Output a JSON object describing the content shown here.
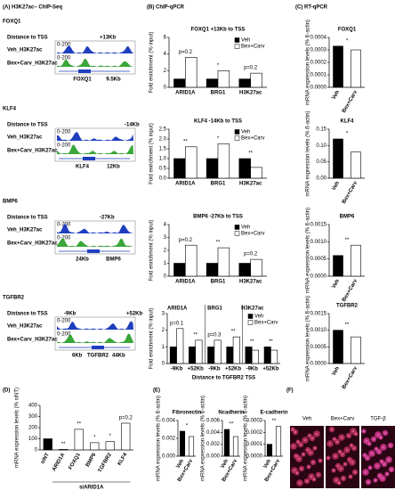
{
  "panel_labels": [
    "(A) H3K27ac– ChIP-Seq",
    "(B) ChIP-qPCR",
    "(C) RT-qPCR",
    "(D)",
    "(E)",
    "(F)"
  ],
  "chip_seq_rows": [
    {
      "gene": "FOXQ1",
      "distance_label": "Distance to TSS",
      "offsets": [
        "+13Kb"
      ],
      "tracks": [
        "Veh_H3K27ac",
        "Bex+Carv_H3K27ac"
      ],
      "scale": "0-200",
      "features": [
        "FOXQ1",
        "9.5Kb"
      ]
    },
    {
      "gene": "KLF4",
      "distance_label": "Distance to TSS",
      "offsets": [
        "-14Kb"
      ],
      "tracks": [
        "Veh_H3K27ac",
        "Bex+Carv_H3K27ac"
      ],
      "scale": "0-200",
      "features": [
        "KLF4",
        "12Kb"
      ]
    },
    {
      "gene": "BMP6",
      "distance_label": "Distance to TSS",
      "offsets": [
        "-27Kb"
      ],
      "tracks": [
        "Veh_H3K27ac",
        "Bex+Carv_H3K27ac"
      ],
      "scale": "0-200",
      "features": [
        "24Kb",
        "BMP6"
      ]
    },
    {
      "gene": "TGFBR2",
      "distance_label": "Distance to TSS",
      "offsets": [
        "-9Kb",
        "+52Kb"
      ],
      "tracks": [
        "Veh_H3K27ac",
        "Bex+Carv_H3K27ac"
      ],
      "scale": "0-200",
      "features": [
        "6Kb",
        "TGFBR2",
        "44Kb"
      ]
    }
  ],
  "microscopy_labels": [
    "Veh",
    "Bex+Carv",
    "TGF-β"
  ],
  "chart_data": [
    {
      "type": "bar",
      "title": "FOXQ1 +13Kb to TSS",
      "y_label": "Fold enrichment (% input)",
      "categories": [
        "ARID1A",
        "BRG1",
        "H3K27ac"
      ],
      "series": [
        {
          "name": "Veh",
          "color": "#000000",
          "values": [
            1,
            1,
            1
          ]
        },
        {
          "name": "Bex+Carv",
          "color": "#ffffff",
          "values": [
            3.6,
            2,
            1.7
          ]
        }
      ],
      "annotations": [
        "p=0.2",
        "*",
        "p=0.2"
      ],
      "ylim": [
        0,
        6
      ],
      "yticks": [
        0,
        2,
        4,
        6
      ]
    },
    {
      "type": "bar",
      "title": "FOXQ1",
      "y_label": "mRNA expression levels (% ß-actin)",
      "categories": [
        "Veh",
        "Bex+Carv"
      ],
      "values": [
        0.00033,
        0.0003
      ],
      "colors": [
        "#000000",
        "#ffffff"
      ],
      "annotation": "*",
      "ylim": [
        0,
        0.0004
      ],
      "yticks": [
        {
          "value": 0,
          "label": "0.0000"
        },
        0.0001,
        0.0002,
        0.0003,
        0.0004
      ]
    },
    {
      "type": "bar",
      "title": "KLF4 -14Kb to TSS",
      "y_label": "Fold enrichment (% input)",
      "categories": [
        "ARID1A",
        "BRG1",
        "H3K27ac"
      ],
      "series": [
        {
          "name": "Veh",
          "color": "#000000",
          "values": [
            1,
            1,
            1
          ]
        },
        {
          "name": "Bex+Carv",
          "color": "#ffffff",
          "values": [
            1.6,
            1.75,
            0.55
          ]
        }
      ],
      "annotations": [
        "**",
        "*",
        "**"
      ],
      "ylim": [
        0,
        2.5
      ],
      "yticks": [
        {
          "value": 0,
          "label": "0.0"
        },
        0.5,
        {
          "value": 1,
          "label": "1.0"
        },
        1.5,
        {
          "value": 2,
          "label": "2.0"
        },
        2.5
      ]
    },
    {
      "type": "bar",
      "title": "KLF4",
      "y_label": "mRNA expression levels (% ß-actin)",
      "categories": [
        "Veh",
        "Bex+Carv"
      ],
      "values": [
        0.12,
        0.08
      ],
      "colors": [
        "#000000",
        "#ffffff"
      ],
      "annotation": "*",
      "ylim": [
        0,
        0.15
      ],
      "yticks": [
        {
          "value": 0,
          "label": "0.00"
        },
        0.05,
        {
          "value": 0.1,
          "label": "0.10"
        },
        0.15
      ]
    },
    {
      "type": "bar",
      "title": "BMP6 -27Kb to TSS",
      "y_label": "Fold enrichment (% input)",
      "categories": [
        "ARID1A",
        "BRG1",
        "H3K27ac"
      ],
      "series": [
        {
          "name": "Veh",
          "color": "#000000",
          "values": [
            1,
            1,
            1
          ]
        },
        {
          "name": "Bex+Carv",
          "color": "#ffffff",
          "values": [
            2.4,
            2.2,
            1.3
          ]
        }
      ],
      "annotations": [
        "p=0.2",
        "**",
        "p=0.2"
      ],
      "ylim": [
        0,
        4
      ],
      "yticks": [
        0,
        1,
        2,
        3,
        4
      ]
    },
    {
      "type": "bar",
      "title": "BMP6",
      "y_label": "mRNA expression levels (% ß-actin)",
      "categories": [
        "Veh",
        "Bex+Carv"
      ],
      "values": [
        0.0006,
        0.0009
      ],
      "colors": [
        "#000000",
        "#ffffff"
      ],
      "annotation": "**",
      "ylim": [
        0,
        0.0015
      ],
      "yticks": [
        {
          "value": 0,
          "label": "0.0000"
        },
        0.0005,
        {
          "value": 0.001,
          "label": "0.0010"
        },
        0.0015
      ]
    },
    {
      "type": "bar",
      "y_label": "Fold enrichment (% input)",
      "x_label": "Distance to TGFBR2 TSS",
      "groups": [
        "ARID1A",
        "BRG1",
        "H3K27ac"
      ],
      "categories": [
        "-9Kb",
        "+52Kb",
        "-9Kb",
        "+52Kb",
        "-9Kb",
        "+52Kb"
      ],
      "series": [
        {
          "name": "Veh",
          "color": "#000000",
          "values": [
            1,
            1,
            1,
            1,
            1,
            1
          ]
        },
        {
          "name": "Bex+Carv",
          "color": "#ffffff",
          "values": [
            2.1,
            1.4,
            1.4,
            1.6,
            0.8,
            0.8
          ]
        }
      ],
      "annotations": [
        "p=0.1",
        "**",
        "p=0.3",
        "**",
        "**",
        "**"
      ],
      "ylim": [
        0,
        3
      ],
      "yticks": [
        0,
        1,
        2,
        3
      ]
    },
    {
      "type": "bar",
      "title": "TGFBR2",
      "y_label": "mRNA expression levels (% ß-actin)",
      "categories": [
        "Veh",
        "Bex+Carv"
      ],
      "values": [
        0.001,
        0.0008
      ],
      "colors": [
        "#000000",
        "#ffffff"
      ],
      "annotation": "**",
      "ylim": [
        0,
        0.0015
      ],
      "yticks": [
        {
          "value": 0,
          "label": "0.0000"
        },
        0.0005,
        {
          "value": 0.001,
          "label": "0.0010"
        },
        0.0015
      ]
    },
    {
      "type": "bar",
      "y_label": "mRNA expression levels (% siNT)",
      "categories": [
        "siNT",
        "ARID1A",
        "FOXQ1",
        "BMP6",
        "TGFBR2",
        "KLF4"
      ],
      "values": [
        100,
        5,
        185,
        65,
        75,
        240
      ],
      "colors": [
        "#000000",
        "#ffffff",
        "#ffffff",
        "#ffffff",
        "#ffffff",
        "#ffffff"
      ],
      "annotations": [
        null,
        "**",
        "**",
        "*",
        "*",
        "p=0.2"
      ],
      "group_label": "siARID1A",
      "ylim": [
        0,
        400
      ],
      "yticks": [
        0,
        100,
        200,
        300,
        400
      ]
    },
    {
      "type": "bar",
      "title": "Fibronectin",
      "y_label": "mRNA expression levels (% ß-actin)",
      "categories": [
        "Veh",
        "Bex+Carv"
      ],
      "values": [
        0.0028,
        0.0022
      ],
      "colors": [
        "#000000",
        "#ffffff"
      ],
      "annotation": "*",
      "ylim": [
        0,
        0.004
      ],
      "yticks": [
        {
          "value": 0,
          "label": "0.000"
        },
        0.002,
        0.004
      ]
    },
    {
      "type": "bar",
      "title": "Ncadherin",
      "y_label": "mRNA expression levels (% ß-actin)",
      "categories": [
        "Veh",
        "Bex+Carv"
      ],
      "values": [
        0.0045,
        0.0033
      ],
      "colors": [
        "#000000",
        "#ffffff"
      ],
      "annotation": "**",
      "ylim": [
        0,
        0.006
      ],
      "yticks": [
        {
          "value": 0,
          "label": "0.000"
        },
        0.002,
        0.004,
        0.006
      ]
    },
    {
      "type": "bar",
      "title": "E-cadherin",
      "y_label": "mRNA expression levels (% ß-actin)",
      "categories": [
        "Veh",
        "Bex+Carv"
      ],
      "values": [
        0.0001,
        0.00025
      ],
      "colors": [
        "#000000",
        "#ffffff"
      ],
      "annotation": "**",
      "ylim": [
        0,
        0.0003
      ],
      "yticks": [
        {
          "value": 0,
          "label": "0.0000"
        },
        0.0001,
        0.0002,
        0.0003
      ]
    }
  ]
}
